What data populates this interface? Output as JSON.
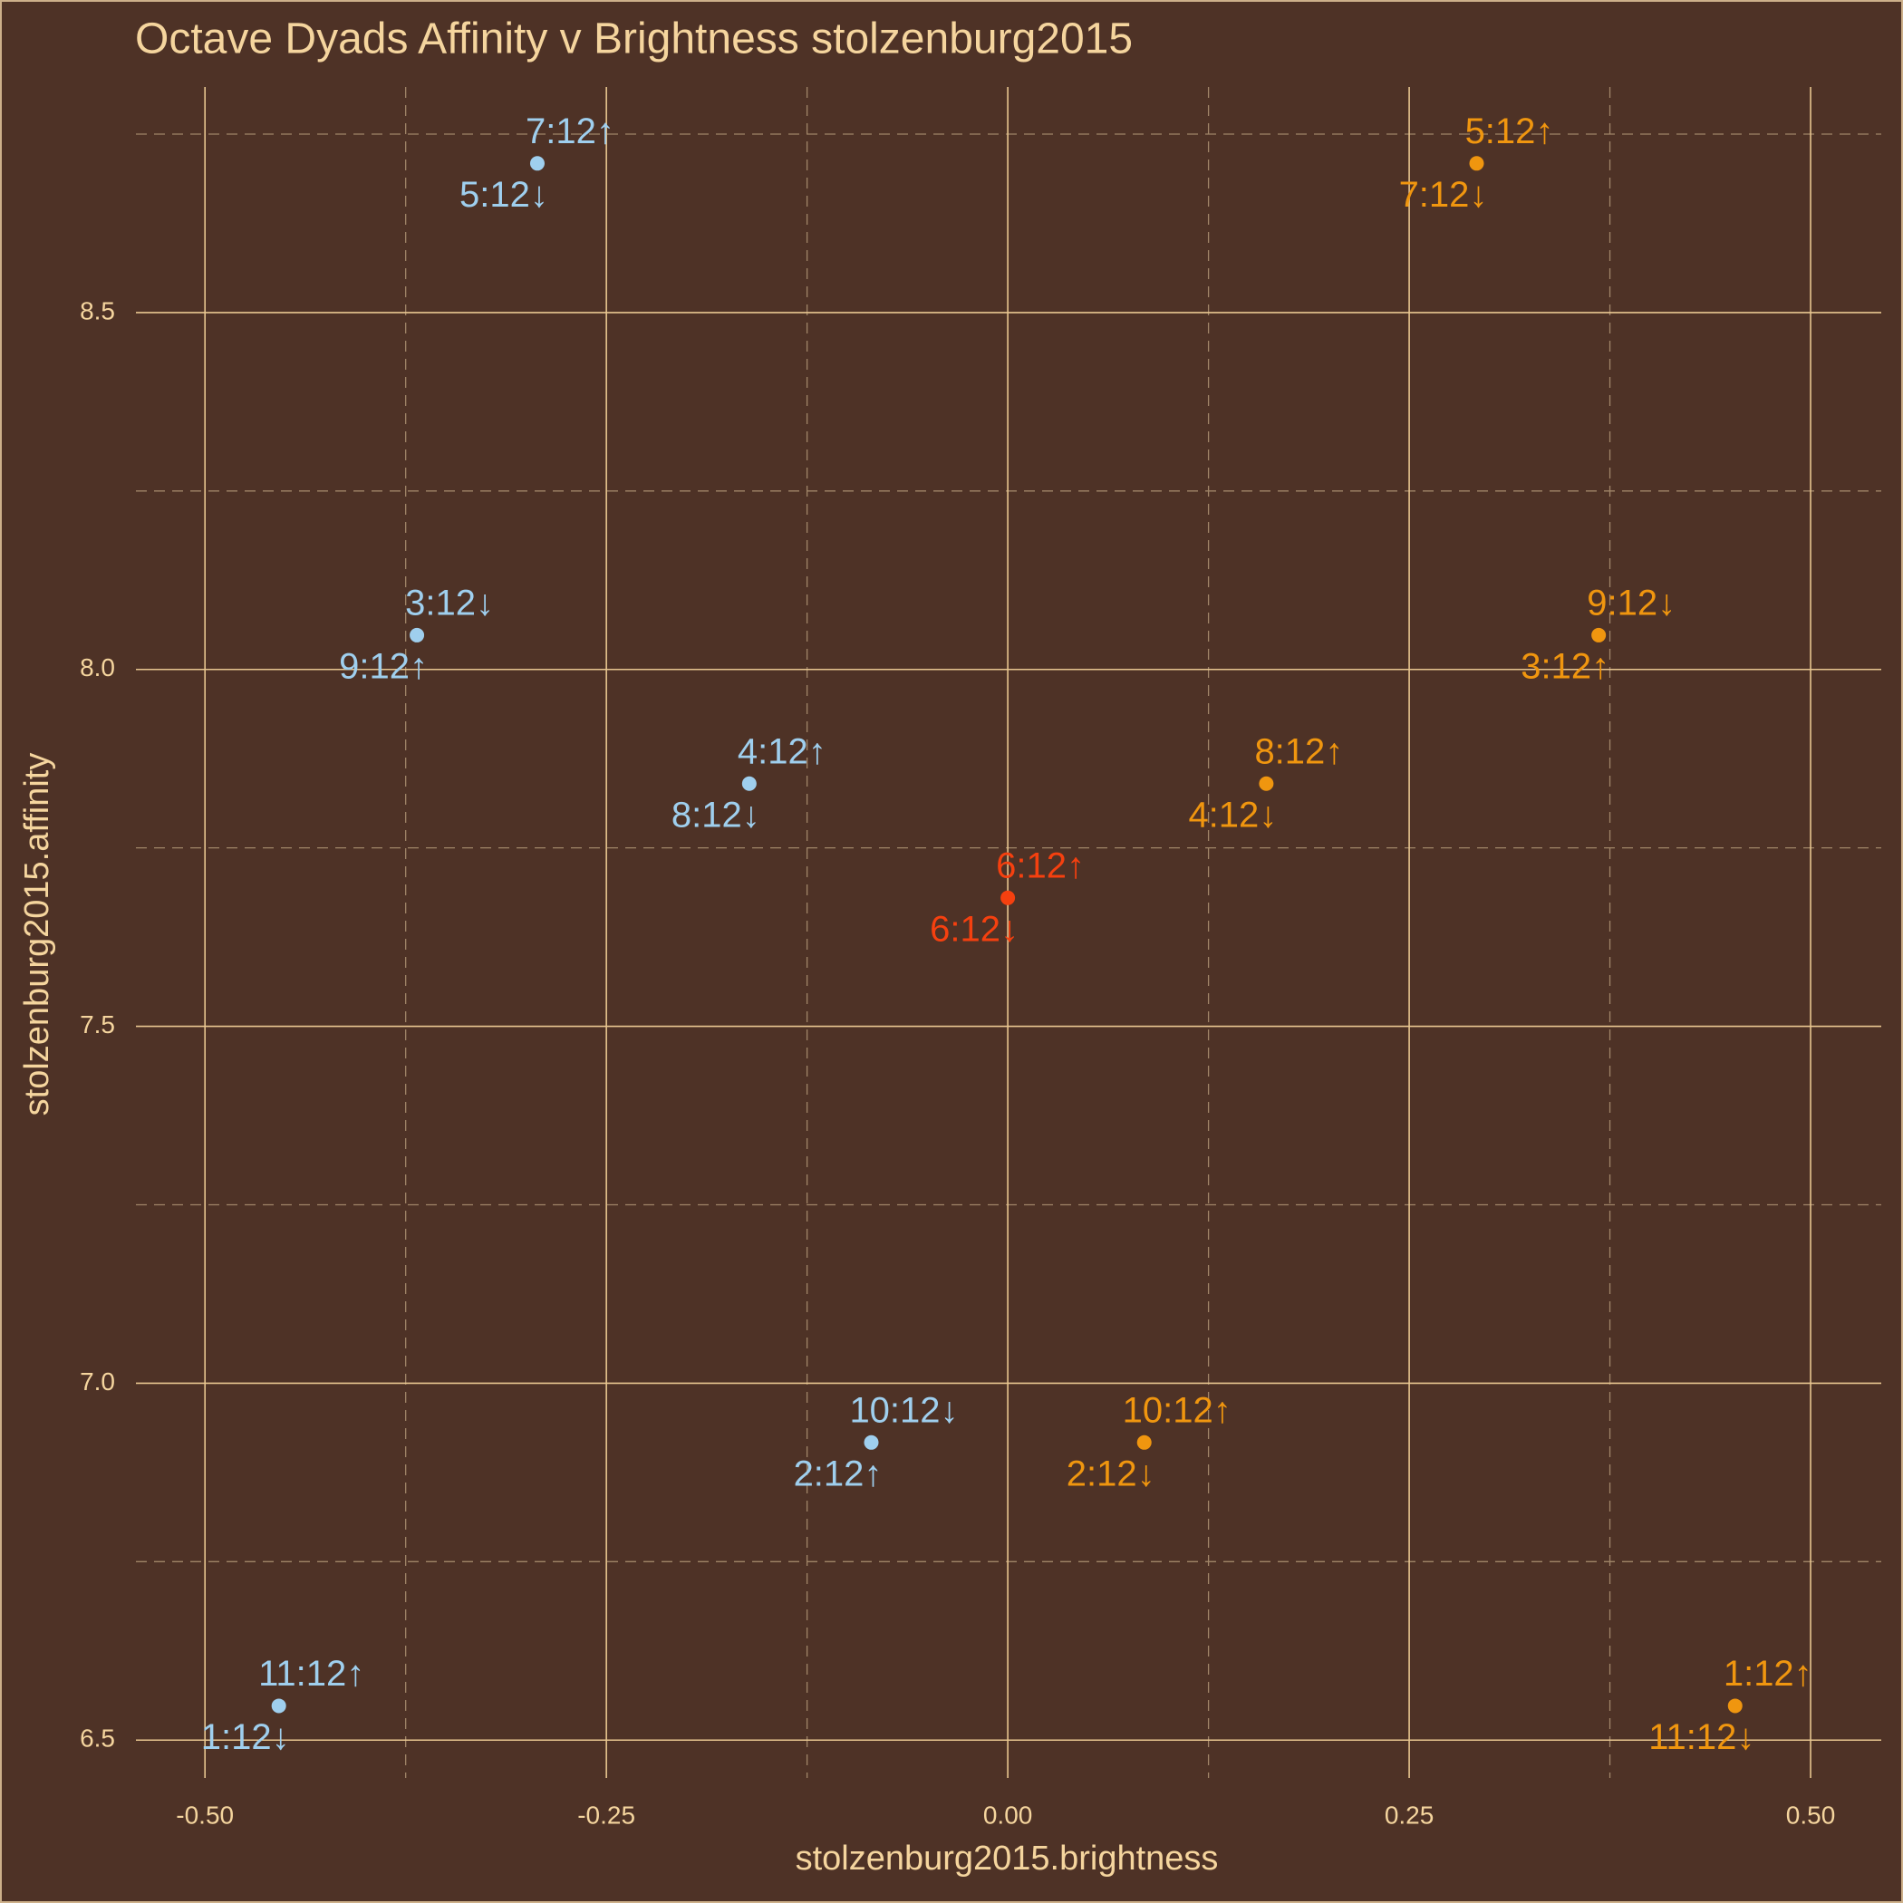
{
  "chart_data": {
    "type": "scatter",
    "title": "Octave Dyads Affinity v Brightness stolzenburg2015",
    "x_label": "stolzenburg2015.brightness",
    "y_label": "stolzenburg2015.affinity",
    "x": [
      -0.293,
      0.292,
      -0.368,
      0.368,
      -0.161,
      0.161,
      0,
      -0.085,
      0.085,
      -0.454,
      0.453
    ],
    "y": [
      8.709,
      8.709,
      8.048,
      8.048,
      7.84,
      7.84,
      7.68,
      6.917,
      6.917,
      6.548,
      6.548
    ],
    "labels": [
      [
        "7:12↑",
        "5:12↓"
      ],
      [
        "5:12↑",
        "7:12↓"
      ],
      [
        "3:12↓",
        "9:12↑"
      ],
      [
        "9:12↓",
        "3:12↑"
      ],
      [
        "4:12↑",
        "8:12↓"
      ],
      [
        "8:12↑",
        "4:12↓"
      ],
      [
        "6:12↑",
        "6:12↓"
      ],
      [
        "10:12↓",
        "2:12↑"
      ],
      [
        "10:12↑",
        "2:12↓"
      ],
      [
        "11:12↑",
        "1:12↓"
      ],
      [
        "1:12↑",
        "11:12↓"
      ]
    ],
    "colors": [
      "#9fcfee",
      "#f0960f",
      "#9fcfee",
      "#f0960f",
      "#9fcfee",
      "#f0960f",
      "#f5400f",
      "#9fcfee",
      "#f0960f",
      "#9fcfee",
      "#f0960f"
    ],
    "xlim": [
      -0.543,
      0.544
    ],
    "ylim": [
      6.447,
      8.816
    ],
    "xticks": [
      {
        "value": -0.5,
        "label": "-0.50"
      },
      {
        "value": -0.25,
        "label": "-0.25"
      },
      {
        "value": 0,
        "label": "0.00"
      },
      {
        "value": 0.25,
        "label": "0.25"
      },
      {
        "value": 0.5,
        "label": "0.50"
      }
    ],
    "yticks": [
      {
        "value": 6.5,
        "label": "6.5"
      },
      {
        "value": 7,
        "label": "7.0"
      },
      {
        "value": 7.5,
        "label": "7.5"
      },
      {
        "value": 8,
        "label": "8.0"
      },
      {
        "value": 8.5,
        "label": "8.5"
      }
    ],
    "minor_xticks": [
      -0.375,
      -0.125,
      0.125,
      0.375
    ],
    "minor_yticks": [
      6.75,
      7.25,
      7.75,
      8.25,
      8.75
    ],
    "grid": true
  }
}
